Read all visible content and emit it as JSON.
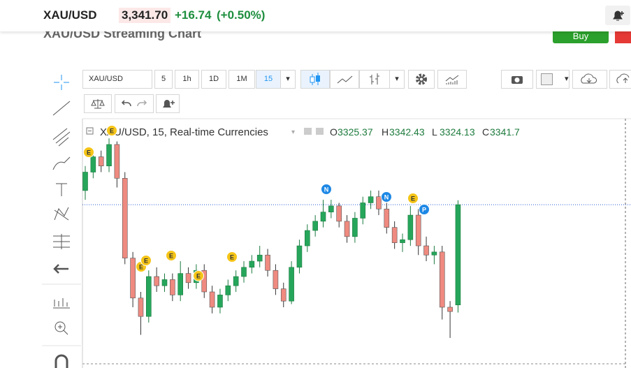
{
  "page": {
    "title": "XAU/USD Streaming Chart",
    "buy": "Buy"
  },
  "header": {
    "symbol": "XAU/USD",
    "price": "3,341.70",
    "change": "+16.74",
    "change_percent": "(+0.50%)"
  },
  "toolbar": {
    "symbol": "XAU/USD",
    "intervals": [
      "5",
      "1h",
      "1D",
      "1M",
      "15"
    ]
  },
  "chart_data": {
    "type": "candlestick",
    "title": "XAU/USD, 15, Real-time Currencies",
    "legend_labels": [
      "O",
      "H",
      "L",
      "C"
    ],
    "up_color": "#26a65b",
    "down_color": "#ef8a80",
    "open": [
      3344.0,
      3347.0,
      3349.5,
      3348.0,
      3351.5,
      3346.0,
      3333.0,
      3326.5,
      3323.5,
      3330.0,
      3328.5,
      3329.5,
      3327.0,
      3330.5,
      3329.0,
      3331.0,
      3327.5,
      3325.0,
      3327.0,
      3328.5,
      3330.0,
      3331.5,
      3332.5,
      3333.5,
      3331.0,
      3328.0,
      3326.0,
      3331.5,
      3335.0,
      3337.5,
      3339.0,
      3340.5,
      3341.5,
      3339.0,
      3336.5,
      3339.5,
      3342.0,
      3343.0,
      3341.0,
      3338.0,
      3335.5,
      3336.0,
      3340.0,
      3335.0,
      3333.5,
      3334.0,
      3325.0,
      3325.37
    ],
    "high": [
      3348.0,
      3350.5,
      3350.5,
      3352.5,
      3352.0,
      3347.0,
      3334.0,
      3327.5,
      3331.0,
      3331.5,
      3330.5,
      3330.5,
      3332.5,
      3331.5,
      3332.0,
      3332.0,
      3328.5,
      3328.0,
      3329.5,
      3331.0,
      3332.5,
      3333.5,
      3335.0,
      3334.5,
      3332.0,
      3329.0,
      3332.5,
      3336.0,
      3338.5,
      3340.0,
      3342.5,
      3342.5,
      3342.0,
      3340.0,
      3340.5,
      3343.0,
      3344.0,
      3344.0,
      3342.0,
      3339.0,
      3337.0,
      3341.5,
      3341.0,
      3336.5,
      3335.0,
      3335.0,
      3326.0,
      3342.43
    ],
    "low": [
      3342.5,
      3346.0,
      3347.0,
      3347.0,
      3344.5,
      3332.0,
      3325.0,
      3320.5,
      3322.5,
      3327.5,
      3327.5,
      3326.0,
      3326.0,
      3328.0,
      3328.0,
      3326.5,
      3324.0,
      3324.0,
      3326.0,
      3327.5,
      3329.0,
      3330.5,
      3331.5,
      3330.0,
      3327.0,
      3325.0,
      3325.5,
      3330.5,
      3334.0,
      3336.5,
      3338.0,
      3339.5,
      3338.0,
      3335.5,
      3335.5,
      3338.5,
      3341.0,
      3340.0,
      3337.0,
      3334.5,
      3334.0,
      3335.0,
      3333.5,
      3332.5,
      3332.0,
      3323.0,
      3320.0,
      3324.13
    ],
    "close": [
      3347.0,
      3349.5,
      3348.0,
      3351.5,
      3346.0,
      3333.0,
      3326.5,
      3323.5,
      3330.0,
      3328.5,
      3329.5,
      3327.0,
      3330.5,
      3329.0,
      3331.0,
      3327.5,
      3325.0,
      3327.0,
      3328.5,
      3330.0,
      3331.5,
      3332.5,
      3333.5,
      3331.0,
      3328.0,
      3326.0,
      3331.5,
      3335.0,
      3337.5,
      3339.0,
      3340.5,
      3341.5,
      3339.0,
      3336.5,
      3339.5,
      3342.0,
      3343.0,
      3341.0,
      3338.0,
      3335.5,
      3336.0,
      3340.0,
      3335.0,
      3333.5,
      3334.0,
      3325.0,
      3324.3,
      3341.7
    ],
    "ylim": [
      3315.9,
      3355.7
    ],
    "last_price_line": true,
    "events": [
      "E",
      "E",
      "E",
      "E",
      "E",
      "E",
      "E",
      "N",
      "N",
      "E",
      "P"
    ]
  }
}
